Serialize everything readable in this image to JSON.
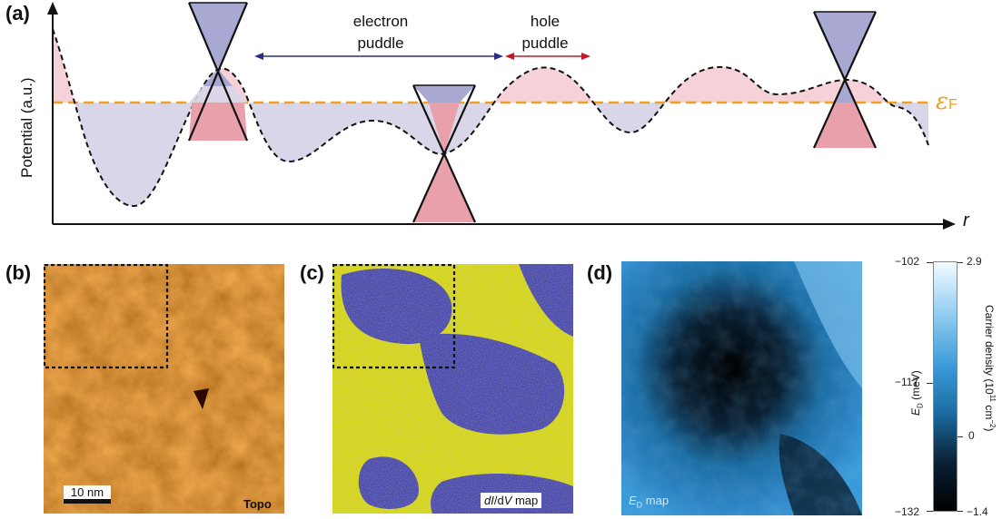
{
  "panels": {
    "a": {
      "label": "(a)",
      "y_axis_label": "Potential (a.u.)",
      "x_axis_label": "r",
      "electron_puddle_label": [
        "electron",
        "puddle"
      ],
      "hole_puddle_label": [
        "hole",
        "puddle"
      ],
      "fermi_symbol": "ε",
      "fermi_subscript": "F",
      "colors": {
        "fermi_line": "#f0a020",
        "electron_fill": "#d9d6ea",
        "hole_fill": "#f6d2d8",
        "cone_upper": "#a8a8d2",
        "cone_lower": "#e8a0aa",
        "electron_arrow": "#2b2b8c",
        "hole_arrow": "#c0182a"
      }
    },
    "b": {
      "label": "(b)",
      "caption": "Topo",
      "scalebar": "10 nm"
    },
    "c": {
      "label": "(c)",
      "caption_italic1": "dI",
      "caption_sep": "/d",
      "caption_italic2": "V",
      "caption_rest": " map"
    },
    "d": {
      "label": "(d)",
      "caption_sym": "E",
      "caption_sub": "D",
      "caption_rest": " map"
    },
    "colorbar": {
      "left_ticks": [
        "−102",
        "−117",
        "−132"
      ],
      "right_ticks": [
        "2.9",
        "0",
        "−1.4"
      ],
      "left_label_sym": "E",
      "left_label_sub": "D",
      "left_label_rest": " (meV)",
      "right_label": "Carrier density (10",
      "right_label_sup1": "11",
      "right_label_mid": " cm",
      "right_label_sup2": "−2",
      "right_label_end": ")"
    }
  }
}
